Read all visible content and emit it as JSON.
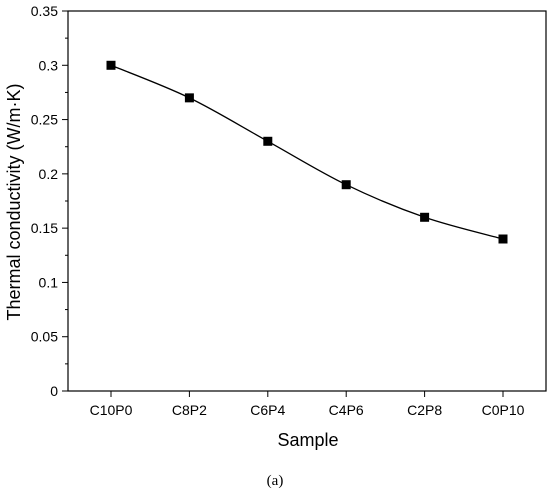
{
  "chart_data": {
    "type": "line",
    "categories": [
      "C10P0",
      "C8P2",
      "C6P4",
      "C4P6",
      "C2P8",
      "C0P10"
    ],
    "series": [
      {
        "values": [
          0.3,
          0.27,
          0.23,
          0.19,
          0.16,
          0.14
        ]
      }
    ],
    "xlabel": "Sample",
    "ylabel": "Thermal conductivity (W/m·K)",
    "ylim": [
      0,
      0.35
    ],
    "yticks": [
      0,
      0.05,
      0.1,
      0.15,
      0.2,
      0.25,
      0.3,
      0.35
    ],
    "ytick_labels": [
      "0",
      "0.05",
      "0.1",
      "0.15",
      "0.2",
      "0.25",
      "0.3",
      "0.35"
    ],
    "marker": "filled-square",
    "line_color": "#000000",
    "grid": false,
    "legend": "none",
    "caption": "(a)"
  }
}
